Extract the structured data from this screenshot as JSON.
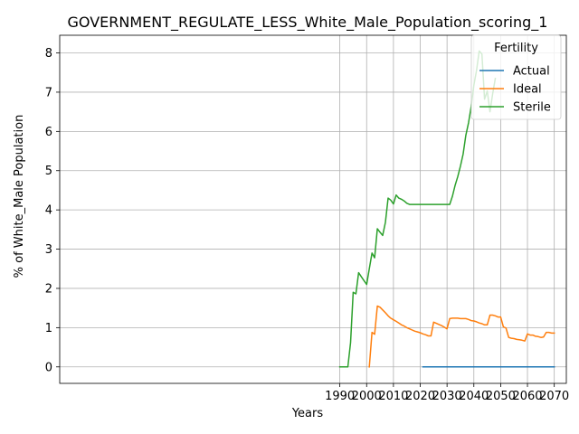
{
  "chart_data": {
    "type": "line",
    "title": "GOVERNMENT_REGULATE_LESS_White_Male_Population_scoring_1",
    "xlabel": "Years",
    "ylabel": "% of White_Male Population",
    "xlim": [
      1885.5,
      2074.5
    ],
    "ylim": [
      -0.42,
      8.45
    ],
    "xticks": [
      1990,
      2000,
      2010,
      2020,
      2030,
      2040,
      2050,
      2060,
      2070
    ],
    "yticks": [
      0,
      1,
      2,
      3,
      4,
      5,
      6,
      7,
      8
    ],
    "grid": true,
    "legend": {
      "title": "Fertility",
      "placement": "top-right"
    },
    "series": [
      {
        "name": "Actual",
        "color": "#1f77b4",
        "x": [
          2021,
          2070
        ],
        "y": [
          0,
          0
        ]
      },
      {
        "name": "Ideal",
        "color": "#ff7f0e",
        "x": [
          2001,
          2002,
          2003,
          2004,
          2005,
          2006,
          2007,
          2008,
          2009,
          2010,
          2011,
          2012,
          2013,
          2014,
          2015,
          2016,
          2017,
          2018,
          2019,
          2020,
          2021,
          2022,
          2023,
          2024,
          2025,
          2026,
          2027,
          2028,
          2029,
          2030,
          2031,
          2032,
          2033,
          2034,
          2035,
          2036,
          2037,
          2038,
          2039,
          2040,
          2041,
          2042,
          2043,
          2044,
          2045,
          2046,
          2047,
          2048,
          2049,
          2050,
          2051,
          2052,
          2053,
          2054,
          2055,
          2056,
          2057,
          2058,
          2059,
          2060,
          2061,
          2062,
          2063,
          2064,
          2065,
          2066,
          2067,
          2068,
          2069,
          2070
        ],
        "y": [
          0,
          0.88,
          0.83,
          1.55,
          1.52,
          1.45,
          1.38,
          1.3,
          1.24,
          1.2,
          1.16,
          1.12,
          1.07,
          1.04,
          1.0,
          0.97,
          0.94,
          0.91,
          0.89,
          0.87,
          0.84,
          0.82,
          0.79,
          0.79,
          1.14,
          1.11,
          1.08,
          1.05,
          1.01,
          0.97,
          1.23,
          1.24,
          1.24,
          1.24,
          1.23,
          1.23,
          1.23,
          1.21,
          1.18,
          1.17,
          1.15,
          1.12,
          1.1,
          1.07,
          1.07,
          1.32,
          1.32,
          1.3,
          1.27,
          1.27,
          1.02,
          0.99,
          0.75,
          0.73,
          0.72,
          0.7,
          0.69,
          0.68,
          0.66,
          0.84,
          0.81,
          0.81,
          0.78,
          0.77,
          0.75,
          0.76,
          0.88,
          0.88,
          0.86,
          0.86
        ]
      },
      {
        "name": "Sterile",
        "color": "#2ca02c",
        "x": [
          1990,
          1991,
          1992,
          1993,
          1994,
          1995,
          1996,
          1997,
          1998,
          1999,
          2000,
          2001,
          2002,
          2003,
          2004,
          2005,
          2006,
          2007,
          2008,
          2009,
          2010,
          2011,
          2012,
          2013,
          2014,
          2015,
          2016,
          2017,
          2018,
          2019,
          2020,
          2021,
          2022,
          2023,
          2024,
          2025,
          2026,
          2027,
          2028,
          2029,
          2030,
          2031,
          2032,
          2033,
          2034,
          2035,
          2036,
          2037,
          2038,
          2039,
          2040,
          2041,
          2042,
          2043,
          2044,
          2045,
          2046,
          2047,
          2048
        ],
        "y": [
          0,
          0,
          0,
          0,
          0.62,
          1.9,
          1.86,
          2.4,
          2.3,
          2.2,
          2.1,
          2.5,
          2.9,
          2.78,
          3.52,
          3.43,
          3.35,
          3.68,
          4.3,
          4.25,
          4.15,
          4.38,
          4.3,
          4.27,
          4.23,
          4.17,
          4.14,
          4.14,
          4.14,
          4.14,
          4.14,
          4.14,
          4.14,
          4.14,
          4.14,
          4.14,
          4.14,
          4.14,
          4.14,
          4.14,
          4.14,
          4.14,
          4.35,
          4.62,
          4.85,
          5.12,
          5.42,
          5.9,
          6.22,
          6.63,
          7.18,
          7.55,
          8.05,
          7.97,
          6.82,
          7.03,
          6.5,
          6.95,
          7.35
        ]
      }
    ]
  }
}
